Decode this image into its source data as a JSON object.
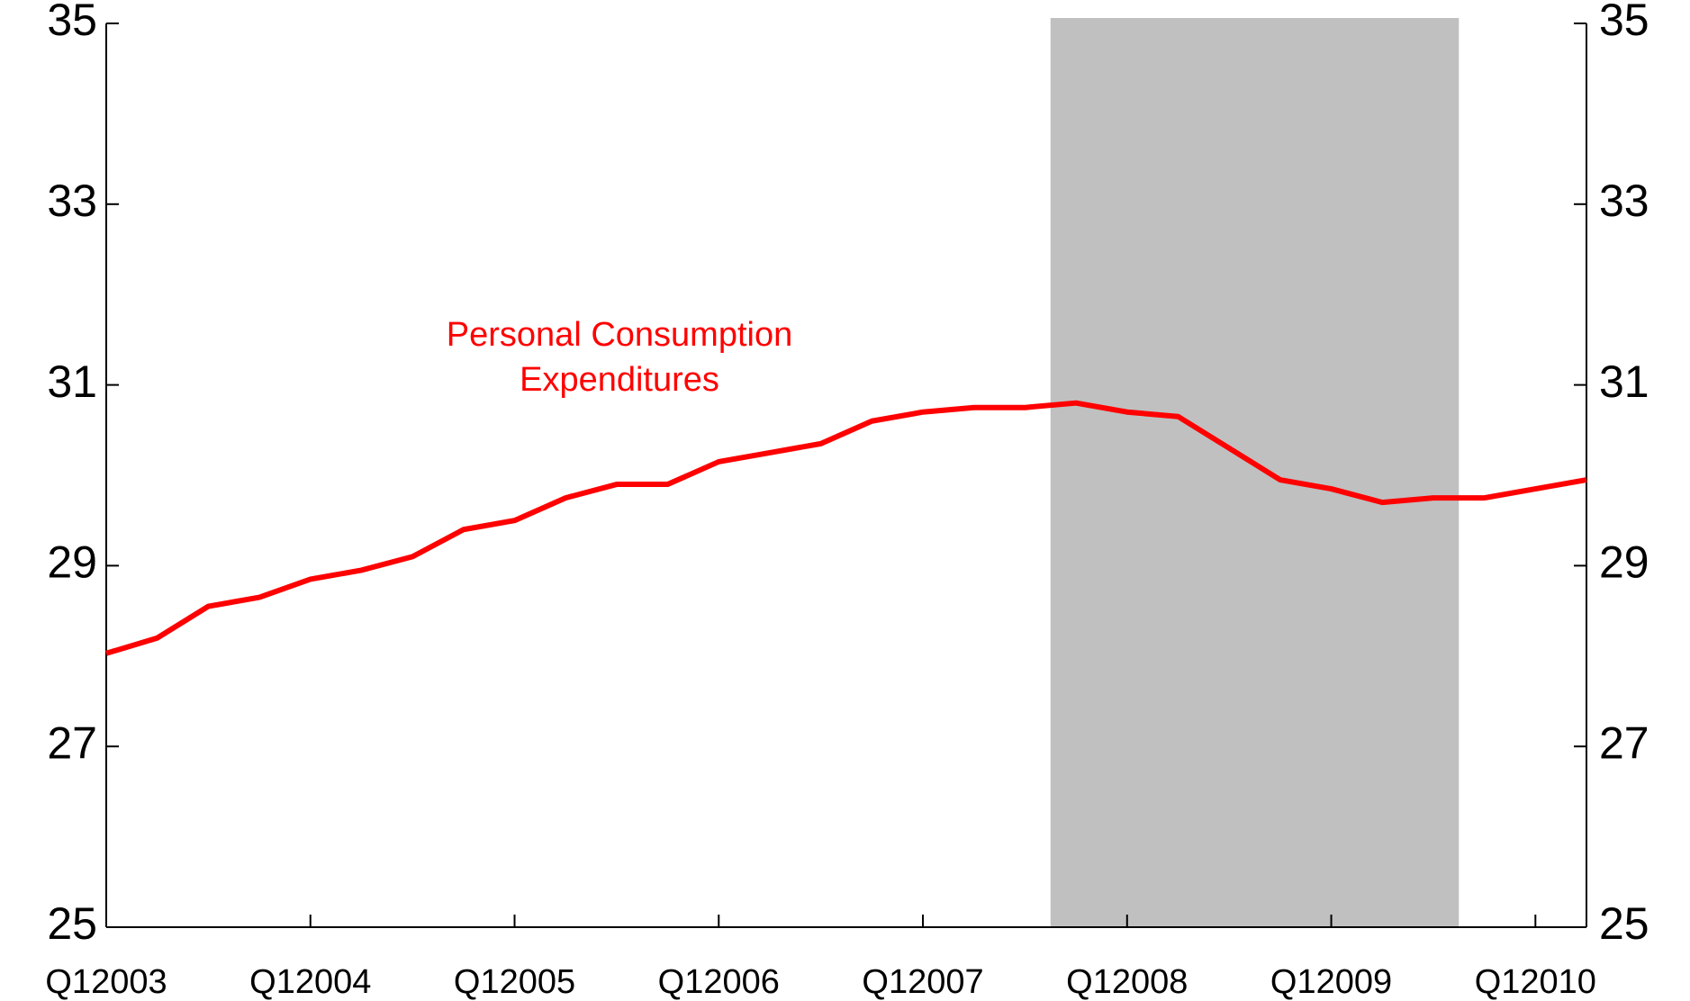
{
  "chart_data": {
    "type": "line",
    "annotation": [
      "Personal Consumption",
      "Expenditures"
    ],
    "categories": [
      "Q12003",
      null,
      null,
      null,
      "Q12004",
      null,
      null,
      null,
      "Q12005",
      null,
      null,
      null,
      "Q12006",
      null,
      null,
      null,
      "Q12007",
      null,
      null,
      null,
      "Q12008",
      null,
      null,
      null,
      "Q12009",
      null,
      null,
      null,
      "Q12010",
      null
    ],
    "series": [
      {
        "color": "#ff0000",
        "values": [
          28.03,
          28.2,
          28.55,
          28.65,
          28.85,
          28.95,
          29.1,
          29.4,
          29.5,
          29.75,
          29.9,
          29.9,
          30.15,
          30.25,
          30.35,
          30.6,
          30.7,
          30.75,
          30.75,
          30.8,
          30.7,
          30.65,
          30.3,
          29.95,
          29.85,
          29.7,
          29.75,
          29.75,
          29.85,
          29.95
        ]
      }
    ],
    "shaded_band": {
      "from": 18.5,
      "to": 26.5,
      "color": "#c0c0c0"
    },
    "ylim": [
      25,
      35
    ],
    "yticks": [
      25,
      27,
      29,
      31,
      33,
      35
    ],
    "y2lim": [
      25,
      35
    ],
    "y2ticks": [
      25,
      27,
      29,
      31,
      33,
      35
    ]
  }
}
